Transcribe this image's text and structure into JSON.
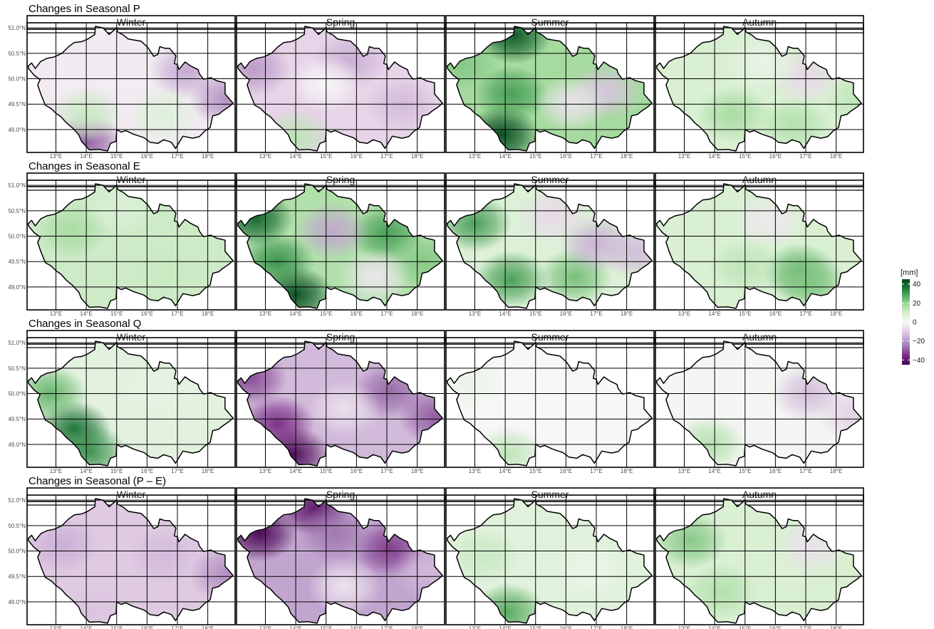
{
  "chart_data": {
    "type": "heatmap",
    "rows": [
      {
        "title": "Changes in Seasonal P",
        "panels": [
          {
            "season": "Winter",
            "mean": -3,
            "blobs": [
              {
                "lon": 14.0,
                "lat": 48.75,
                "v": -30
              },
              {
                "lon": 18.6,
                "lat": 49.6,
                "v": -22
              },
              {
                "lon": 17.3,
                "lat": 50.15,
                "v": -18
              },
              {
                "lon": 14.0,
                "lat": 49.3,
                "v": 12
              },
              {
                "lon": 16.5,
                "lat": 49.3,
                "v": 8
              }
            ]
          },
          {
            "season": "Spring",
            "mean": -9,
            "blobs": [
              {
                "lon": 14.0,
                "lat": 48.85,
                "v": 14
              },
              {
                "lon": 12.6,
                "lat": 50.2,
                "v": -20
              },
              {
                "lon": 15.8,
                "lat": 50.35,
                "v": -16
              },
              {
                "lon": 17.5,
                "lat": 49.5,
                "v": -14
              },
              {
                "lon": 15.0,
                "lat": 49.9,
                "v": 0
              }
            ]
          },
          {
            "season": "Summer",
            "mean": 18,
            "blobs": [
              {
                "lon": 14.3,
                "lat": 50.85,
                "v": 42
              },
              {
                "lon": 13.9,
                "lat": 48.9,
                "v": 44
              },
              {
                "lon": 14.2,
                "lat": 49.7,
                "v": 30
              },
              {
                "lon": 12.6,
                "lat": 50.3,
                "v": 22
              },
              {
                "lon": 17.3,
                "lat": 49.75,
                "v": -12
              },
              {
                "lon": 16.2,
                "lat": 49.5,
                "v": -5
              }
            ]
          },
          {
            "season": "Autumn",
            "mean": 9,
            "blobs": [
              {
                "lon": 14.6,
                "lat": 49.3,
                "v": 18
              },
              {
                "lon": 16.6,
                "lat": 49.1,
                "v": 16
              },
              {
                "lon": 18.8,
                "lat": 49.6,
                "v": 14
              },
              {
                "lon": 17.0,
                "lat": 50.05,
                "v": -8
              },
              {
                "lon": 15.6,
                "lat": 50.3,
                "v": 4
              }
            ]
          }
        ]
      },
      {
        "title": "Changes in Seasonal E",
        "panels": [
          {
            "season": "Winter",
            "mean": 11,
            "blobs": [
              {
                "lon": 13.5,
                "lat": 50.1,
                "v": 18
              },
              {
                "lon": 16.6,
                "lat": 49.3,
                "v": 12
              },
              {
                "lon": 15.2,
                "lat": 50.6,
                "v": 8
              }
            ]
          },
          {
            "season": "Spring",
            "mean": 16,
            "blobs": [
              {
                "lon": 12.7,
                "lat": 50.35,
                "v": 40
              },
              {
                "lon": 14.0,
                "lat": 48.85,
                "v": 44
              },
              {
                "lon": 13.4,
                "lat": 49.5,
                "v": 32
              },
              {
                "lon": 17.0,
                "lat": 50.05,
                "v": 30
              },
              {
                "lon": 18.2,
                "lat": 49.5,
                "v": 22
              },
              {
                "lon": 15.2,
                "lat": 50.1,
                "v": -18
              },
              {
                "lon": 16.6,
                "lat": 49.2,
                "v": -4
              }
            ]
          },
          {
            "season": "Summer",
            "mean": 8,
            "blobs": [
              {
                "lon": 13.0,
                "lat": 50.25,
                "v": 30
              },
              {
                "lon": 14.2,
                "lat": 49.15,
                "v": 30
              },
              {
                "lon": 16.3,
                "lat": 49.2,
                "v": 24
              },
              {
                "lon": 17.0,
                "lat": 49.85,
                "v": -16
              },
              {
                "lon": 18.3,
                "lat": 49.7,
                "v": -14
              },
              {
                "lon": 15.6,
                "lat": 50.4,
                "v": -8
              }
            ]
          },
          {
            "season": "Autumn",
            "mean": 9,
            "blobs": [
              {
                "lon": 16.8,
                "lat": 49.3,
                "v": 26
              },
              {
                "lon": 17.2,
                "lat": 49.05,
                "v": 22
              },
              {
                "lon": 15.0,
                "lat": 49.4,
                "v": 14
              },
              {
                "lon": 15.8,
                "lat": 50.3,
                "v": -4
              }
            ]
          }
        ]
      },
      {
        "title": "Changes in Seasonal Q",
        "panels": [
          {
            "season": "Winter",
            "mean": 6,
            "blobs": [
              {
                "lon": 13.6,
                "lat": 49.3,
                "v": 38
              },
              {
                "lon": 12.8,
                "lat": 50.0,
                "v": 26
              },
              {
                "lon": 14.1,
                "lat": 48.85,
                "v": 32
              },
              {
                "lon": 16.5,
                "lat": 50.1,
                "v": 5
              }
            ]
          },
          {
            "season": "Spring",
            "mean": -14,
            "blobs": [
              {
                "lon": 13.9,
                "lat": 48.8,
                "v": -44
              },
              {
                "lon": 13.4,
                "lat": 49.4,
                "v": -36
              },
              {
                "lon": 12.5,
                "lat": 50.3,
                "v": -32
              },
              {
                "lon": 17.1,
                "lat": 50.05,
                "v": -28
              },
              {
                "lon": 18.6,
                "lat": 49.55,
                "v": -30
              },
              {
                "lon": 15.6,
                "lat": 49.7,
                "v": -6
              }
            ]
          },
          {
            "season": "Summer",
            "mean": 0,
            "blobs": [
              {
                "lon": 14.1,
                "lat": 48.8,
                "v": 14
              },
              {
                "lon": 12.8,
                "lat": 50.2,
                "v": 4
              }
            ]
          },
          {
            "season": "Autumn",
            "mean": 1,
            "blobs": [
              {
                "lon": 13.8,
                "lat": 49.0,
                "v": 16
              },
              {
                "lon": 17.1,
                "lat": 50.0,
                "v": -14
              },
              {
                "lon": 18.6,
                "lat": 49.6,
                "v": -10
              }
            ]
          }
        ]
      },
      {
        "title": "Changes in Seasonal (P – E)",
        "panels": [
          {
            "season": "Winter",
            "mean": -11,
            "blobs": [
              {
                "lon": 18.6,
                "lat": 49.55,
                "v": -22
              },
              {
                "lon": 13.2,
                "lat": 50.1,
                "v": -16
              },
              {
                "lon": 16.6,
                "lat": 49.9,
                "v": -14
              },
              {
                "lon": 14.1,
                "lat": 48.8,
                "v": -12
              }
            ]
          },
          {
            "season": "Spring",
            "mean": -18,
            "blobs": [
              {
                "lon": 12.8,
                "lat": 50.35,
                "v": -44
              },
              {
                "lon": 14.6,
                "lat": 50.85,
                "v": -40
              },
              {
                "lon": 17.1,
                "lat": 50.05,
                "v": -34
              },
              {
                "lon": 15.3,
                "lat": 50.35,
                "v": -26
              },
              {
                "lon": 15.6,
                "lat": 49.3,
                "v": -4
              },
              {
                "lon": 18.4,
                "lat": 49.6,
                "v": -14
              }
            ]
          },
          {
            "season": "Summer",
            "mean": 7,
            "blobs": [
              {
                "lon": 14.1,
                "lat": 48.8,
                "v": 28
              },
              {
                "lon": 13.3,
                "lat": 49.9,
                "v": 12
              },
              {
                "lon": 16.8,
                "lat": 49.6,
                "v": 3
              }
            ]
          },
          {
            "season": "Autumn",
            "mean": 9,
            "blobs": [
              {
                "lon": 13.2,
                "lat": 50.2,
                "v": 22
              },
              {
                "lon": 14.2,
                "lat": 49.2,
                "v": 16
              },
              {
                "lon": 16.5,
                "lat": 49.6,
                "v": 8
              },
              {
                "lon": 17.2,
                "lat": 50.1,
                "v": -6
              }
            ]
          }
        ]
      }
    ],
    "x_ticks": [
      13,
      14,
      15,
      16,
      17,
      18
    ],
    "x_tick_labels": [
      "13°E",
      "14°E",
      "15°E",
      "16°E",
      "17°E",
      "18°E"
    ],
    "y_ticks": [
      49.0,
      49.5,
      50.0,
      50.5,
      51.0
    ],
    "y_tick_labels": [
      "49.0°N",
      "49.5°N",
      "50.0°N",
      "50.5°N",
      "51.0°N"
    ],
    "xlim": [
      12.05,
      18.9
    ],
    "ylim": [
      48.55,
      51.1
    ],
    "grid": true,
    "legend": {
      "title": "[mm]",
      "placement": "right",
      "breaks": [
        40,
        20,
        0,
        -20,
        -40
      ],
      "labels": [
        "40",
        "20",
        "0",
        "−20",
        "−40"
      ],
      "range": [
        -45,
        45
      ],
      "palette": [
        "#40004b",
        "#762a83",
        "#9970ab",
        "#c2a5cf",
        "#e7d4e8",
        "#f7f7f7",
        "#d9f0d3",
        "#a6dba0",
        "#5aae61",
        "#1b7837",
        "#00441b"
      ]
    },
    "border_lonlat": [
      [
        12.09,
        50.25
      ],
      [
        12.2,
        50.31
      ],
      [
        12.32,
        50.2
      ],
      [
        12.5,
        50.34
      ],
      [
        12.7,
        50.4
      ],
      [
        12.95,
        50.43
      ],
      [
        13.2,
        50.5
      ],
      [
        13.42,
        50.63
      ],
      [
        13.6,
        50.71
      ],
      [
        13.85,
        50.73
      ],
      [
        14.05,
        50.78
      ],
      [
        14.28,
        50.87
      ],
      [
        14.3,
        51.03
      ],
      [
        14.55,
        51.0
      ],
      [
        14.75,
        50.87
      ],
      [
        15.0,
        51.0
      ],
      [
        15.03,
        50.92
      ],
      [
        15.22,
        50.86
      ],
      [
        15.38,
        50.78
      ],
      [
        15.58,
        50.76
      ],
      [
        15.8,
        50.74
      ],
      [
        16.02,
        50.62
      ],
      [
        16.22,
        50.44
      ],
      [
        16.36,
        50.48
      ],
      [
        16.42,
        50.63
      ],
      [
        16.58,
        50.6
      ],
      [
        16.74,
        50.6
      ],
      [
        16.95,
        50.45
      ],
      [
        16.9,
        50.3
      ],
      [
        17.0,
        50.28
      ],
      [
        17.05,
        50.18
      ],
      [
        17.25,
        50.33
      ],
      [
        17.44,
        50.25
      ],
      [
        17.68,
        50.18
      ],
      [
        17.72,
        50.1
      ],
      [
        17.86,
        49.99
      ],
      [
        18.1,
        50.02
      ],
      [
        18.3,
        49.96
      ],
      [
        18.57,
        49.92
      ],
      [
        18.57,
        49.7
      ],
      [
        18.83,
        49.52
      ],
      [
        18.7,
        49.45
      ],
      [
        18.48,
        49.36
      ],
      [
        18.36,
        49.3
      ],
      [
        18.16,
        49.27
      ],
      [
        18.08,
        49.04
      ],
      [
        17.9,
        48.97
      ],
      [
        17.72,
        48.86
      ],
      [
        17.5,
        48.83
      ],
      [
        17.18,
        48.87
      ],
      [
        16.94,
        48.63
      ],
      [
        16.8,
        48.75
      ],
      [
        16.55,
        48.8
      ],
      [
        16.36,
        48.73
      ],
      [
        16.1,
        48.75
      ],
      [
        15.9,
        48.84
      ],
      [
        15.55,
        48.91
      ],
      [
        15.3,
        48.98
      ],
      [
        15.15,
        48.95
      ],
      [
        15.0,
        49.0
      ],
      [
        14.98,
        48.77
      ],
      [
        14.8,
        48.73
      ],
      [
        14.7,
        48.58
      ],
      [
        14.42,
        48.61
      ],
      [
        14.1,
        48.6
      ],
      [
        13.84,
        48.77
      ],
      [
        13.75,
        48.9
      ],
      [
        13.55,
        49.03
      ],
      [
        13.35,
        49.13
      ],
      [
        13.17,
        49.25
      ],
      [
        13.0,
        49.32
      ],
      [
        12.85,
        49.41
      ],
      [
        12.65,
        49.48
      ],
      [
        12.5,
        49.7
      ],
      [
        12.4,
        49.88
      ],
      [
        12.48,
        49.98
      ],
      [
        12.28,
        50.07
      ],
      [
        12.1,
        50.2
      ]
    ]
  }
}
